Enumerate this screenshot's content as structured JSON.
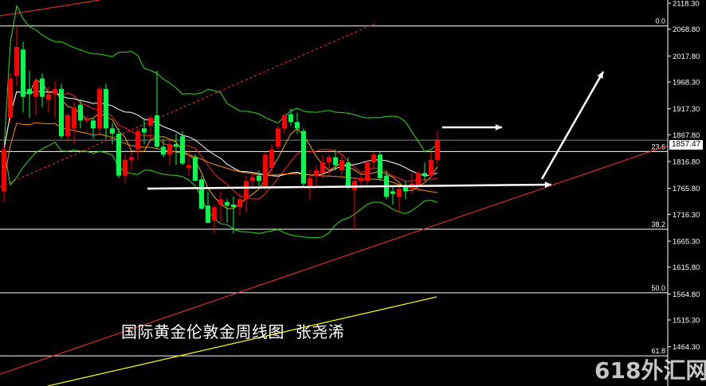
{
  "caption": "国际黄金伦敦金周线图  张尧浠",
  "watermark": "618外汇网",
  "colors": {
    "up": "#ff0000",
    "down": "#00ff4c",
    "bollinger": "#33dd11",
    "ma_fast": "#ffa500",
    "ma_mid": "#ffffff",
    "ma_slow": "#ff2020",
    "ma_long": "#ff8c00",
    "kijun": "#1a1aff",
    "trend": "#ff3030",
    "yellow_line": "#ffff00",
    "fib": "#ffffff"
  },
  "chart_data": {
    "type": "candlestick",
    "title": "",
    "ylim": [
      1400,
      2125
    ],
    "y_ticks": [
      "2118.30",
      "2068.80",
      "2017.80",
      "1968.30",
      "1917.30",
      "1867.80",
      "1816.80",
      "1765.80",
      "1716.30",
      "1665.30",
      "1615.80",
      "1564.80",
      "1515.30",
      "1464.30"
    ],
    "current_price": "1857.47",
    "fib_levels": [
      {
        "label": "0.0",
        "price": 2075
      },
      {
        "label": "23.6",
        "price": 1836
      },
      {
        "label": "38.2",
        "price": 1688
      },
      {
        "label": "50.0",
        "price": 1567
      },
      {
        "label": "61.8",
        "price": 1447
      }
    ],
    "ohlc": [
      [
        1760,
        1850,
        1740,
        1840
      ],
      [
        1900,
        1985,
        1890,
        1975
      ],
      [
        1980,
        2075,
        1960,
        2035
      ],
      [
        2030,
        2045,
        1910,
        1940
      ],
      [
        1955,
        1990,
        1900,
        1945
      ],
      [
        1940,
        1975,
        1905,
        1970
      ],
      [
        1975,
        1985,
        1920,
        1940
      ],
      [
        1935,
        1960,
        1910,
        1945
      ],
      [
        1945,
        1970,
        1900,
        1955
      ],
      [
        1955,
        1965,
        1860,
        1865
      ],
      [
        1865,
        1910,
        1855,
        1905
      ],
      [
        1880,
        1930,
        1850,
        1920
      ],
      [
        1925,
        1935,
        1880,
        1895
      ],
      [
        1895,
        1905,
        1890,
        1898
      ],
      [
        1895,
        1900,
        1860,
        1880
      ],
      [
        1880,
        1960,
        1870,
        1955
      ],
      [
        1955,
        1965,
        1860,
        1880
      ],
      [
        1880,
        1890,
        1850,
        1870
      ],
      [
        1870,
        1880,
        1785,
        1790
      ],
      [
        1790,
        1830,
        1775,
        1820
      ],
      [
        1820,
        1835,
        1800,
        1825
      ],
      [
        1840,
        1880,
        1820,
        1875
      ],
      [
        1880,
        1900,
        1850,
        1872
      ],
      [
        1885,
        1905,
        1860,
        1900
      ],
      [
        1905,
        1990,
        1840,
        1845
      ],
      [
        1845,
        1860,
        1825,
        1830
      ],
      [
        1830,
        1860,
        1810,
        1850
      ],
      [
        1850,
        1870,
        1810,
        1845
      ],
      [
        1865,
        1875,
        1810,
        1813
      ],
      [
        1805,
        1840,
        1790,
        1810
      ],
      [
        1825,
        1830,
        1780,
        1780
      ],
      [
        1783,
        1790,
        1725,
        1727
      ],
      [
        1733,
        1760,
        1700,
        1700
      ],
      [
        1705,
        1735,
        1680,
        1730
      ],
      [
        1735,
        1760,
        1700,
        1745
      ],
      [
        1740,
        1745,
        1700,
        1733
      ],
      [
        1735,
        1750,
        1680,
        1730
      ],
      [
        1730,
        1755,
        1715,
        1745
      ],
      [
        1745,
        1790,
        1720,
        1780
      ],
      [
        1780,
        1795,
        1765,
        1787
      ],
      [
        1790,
        1800,
        1770,
        1780
      ],
      [
        1770,
        1835,
        1760,
        1830
      ],
      [
        1805,
        1850,
        1790,
        1840
      ],
      [
        1845,
        1885,
        1840,
        1880
      ],
      [
        1880,
        1910,
        1870,
        1905
      ],
      [
        1907,
        1918,
        1885,
        1892
      ],
      [
        1892,
        1910,
        1870,
        1880
      ],
      [
        1875,
        1880,
        1770,
        1775
      ],
      [
        1770,
        1800,
        1745,
        1785
      ],
      [
        1790,
        1810,
        1770,
        1800
      ],
      [
        1795,
        1830,
        1785,
        1815
      ],
      [
        1815,
        1830,
        1790,
        1825
      ],
      [
        1825,
        1840,
        1800,
        1810
      ],
      [
        1800,
        1830,
        1790,
        1820
      ],
      [
        1815,
        1825,
        1765,
        1767
      ],
      [
        1763,
        1785,
        1687,
        1780
      ],
      [
        1780,
        1790,
        1765,
        1785
      ],
      [
        1780,
        1820,
        1770,
        1815
      ],
      [
        1815,
        1835,
        1800,
        1830
      ],
      [
        1830,
        1835,
        1780,
        1785
      ],
      [
        1790,
        1800,
        1745,
        1750
      ],
      [
        1760,
        1770,
        1735,
        1755
      ],
      [
        1750,
        1770,
        1720,
        1765
      ],
      [
        1768,
        1780,
        1745,
        1760
      ],
      [
        1765,
        1795,
        1755,
        1775
      ],
      [
        1770,
        1800,
        1760,
        1795
      ],
      [
        1795,
        1815,
        1780,
        1790
      ],
      [
        1790,
        1835,
        1785,
        1820
      ],
      [
        1820,
        1877,
        1810,
        1857
      ]
    ]
  }
}
